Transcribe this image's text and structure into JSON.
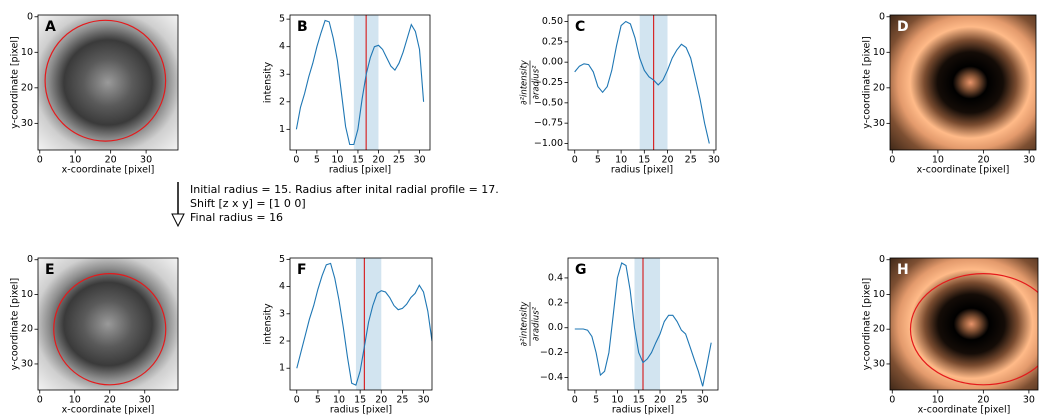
{
  "chart_data": [
    {
      "type": "image",
      "label": "A",
      "colormap": "gray",
      "xlabel": "x-coordinate [pixel]",
      "ylabel": "y-coordinate [pixel]",
      "xlim": [
        -0.5,
        39
      ],
      "ylim": [
        37.5,
        -0.5
      ],
      "xticks": [
        0,
        10,
        20,
        30
      ],
      "yticks": [
        0,
        10,
        20,
        30
      ],
      "circle": {
        "cx": 18.5,
        "cy": 18,
        "r": 17,
        "color": "#e41a1c"
      }
    },
    {
      "type": "line",
      "label": "B",
      "color": "#1f77b4",
      "xlabel": "radius [pixel]",
      "ylabel": "intensity",
      "xlim": [
        -1.55,
        32.55
      ],
      "ylim": [
        0.25,
        5.15
      ],
      "xticks": [
        0,
        5,
        10,
        15,
        20,
        25,
        30
      ],
      "yticks": [
        1,
        2,
        3,
        4,
        5
      ],
      "span": [
        14,
        20
      ],
      "vline": 17,
      "x": [
        0,
        1,
        2,
        3,
        4,
        5,
        6,
        7,
        8,
        9,
        10,
        11,
        12,
        13,
        14,
        15,
        16,
        17,
        18,
        19,
        20,
        21,
        22,
        23,
        24,
        25,
        26,
        27,
        28,
        29,
        30,
        31
      ],
      "values": [
        1.0,
        1.8,
        2.3,
        2.9,
        3.4,
        4.0,
        4.5,
        4.95,
        4.9,
        4.3,
        3.5,
        2.3,
        1.1,
        0.45,
        0.45,
        1.0,
        2.1,
        3.0,
        3.6,
        4.0,
        4.05,
        3.9,
        3.6,
        3.3,
        3.15,
        3.4,
        3.8,
        4.3,
        4.8,
        4.55,
        3.9,
        2.0
      ]
    },
    {
      "type": "line",
      "label": "C",
      "color": "#1f77b4",
      "xlabel": "radius [pixel]",
      "ylabel": [
        "∂²intensity",
        "∂radius²"
      ],
      "xlim": [
        -1.45,
        30.45
      ],
      "ylim": [
        -1.08,
        0.58
      ],
      "xticks": [
        0,
        5,
        10,
        15,
        20,
        25,
        30
      ],
      "yticks": [
        {
          "value": -1,
          "label": "−1.00"
        },
        {
          "value": -0.75,
          "label": "−0.75"
        },
        {
          "value": -0.5,
          "label": "−0.50"
        },
        {
          "value": -0.25,
          "label": "−0.25"
        },
        {
          "value": 0,
          "label": "0.00"
        },
        {
          "value": 0.25,
          "label": "0.25"
        },
        {
          "value": 0.5,
          "label": "0.50"
        }
      ],
      "span": [
        14,
        20
      ],
      "vline": 17,
      "x": [
        0,
        1,
        2,
        3,
        4,
        5,
        6,
        7,
        8,
        9,
        10,
        11,
        12,
        13,
        14,
        15,
        16,
        17,
        18,
        19,
        20,
        21,
        22,
        23,
        24,
        25,
        26,
        27,
        28,
        29
      ],
      "values": [
        -0.12,
        -0.05,
        -0.02,
        -0.03,
        -0.12,
        -0.3,
        -0.37,
        -0.3,
        -0.1,
        0.2,
        0.45,
        0.5,
        0.47,
        0.3,
        0.05,
        -0.1,
        -0.18,
        -0.22,
        -0.28,
        -0.22,
        -0.1,
        0.05,
        0.15,
        0.22,
        0.18,
        0.05,
        -0.2,
        -0.45,
        -0.75,
        -1.0
      ]
    },
    {
      "type": "image",
      "label": "D",
      "colormap": "copper",
      "xlabel": "x-coordinate [pixel]",
      "ylabel": "y-coordinate [pixel]",
      "xlim": [
        -0.5,
        31.5
      ],
      "ylim": [
        37.5,
        -0.5
      ],
      "xticks": [
        0,
        10,
        20,
        30
      ],
      "yticks": [
        0,
        10,
        20,
        30
      ]
    },
    {
      "type": "image",
      "label": "E",
      "colormap": "gray",
      "xlabel": "x-coordinate [pixel]",
      "ylabel": "y-coordinate [pixel]",
      "xlim": [
        -0.5,
        39.5
      ],
      "ylim": [
        37.5,
        -0.5
      ],
      "xticks": [
        0,
        10,
        20,
        30
      ],
      "yticks": [
        0,
        10,
        20,
        30
      ],
      "circle": {
        "cx": 20,
        "cy": 20,
        "r": 16,
        "color": "#e41a1c"
      }
    },
    {
      "type": "line",
      "label": "F",
      "color": "#1f77b4",
      "xlabel": "radius [pixel]",
      "ylabel": "intensity",
      "xlim": [
        -1.6,
        32
      ],
      "ylim": [
        0.2,
        5.05
      ],
      "xticks": [
        0,
        5,
        10,
        15,
        20,
        25,
        30
      ],
      "yticks": [
        1,
        2,
        3,
        4,
        5
      ],
      "span": [
        14,
        20
      ],
      "vline": 16,
      "x": [
        0,
        1,
        2,
        3,
        4,
        5,
        6,
        7,
        8,
        9,
        10,
        11,
        12,
        13,
        14,
        15,
        16,
        17,
        18,
        19,
        20,
        21,
        22,
        23,
        24,
        25,
        26,
        27,
        28,
        29,
        30,
        31,
        32
      ],
      "values": [
        1.0,
        1.6,
        2.2,
        2.8,
        3.3,
        3.9,
        4.4,
        4.8,
        4.85,
        4.3,
        3.5,
        2.5,
        1.4,
        0.45,
        0.38,
        0.9,
        1.8,
        2.7,
        3.3,
        3.75,
        3.85,
        3.8,
        3.6,
        3.3,
        3.15,
        3.2,
        3.35,
        3.6,
        3.75,
        4.05,
        3.8,
        3.1,
        2.0
      ]
    },
    {
      "type": "line",
      "label": "G",
      "color": "#1f77b4",
      "xlabel": "radius [pixel]",
      "ylabel": [
        "∂²intensity",
        "∂radius²"
      ],
      "xlim": [
        -1.6,
        33.6
      ],
      "ylim": [
        -0.5,
        0.56
      ],
      "xticks": [
        0,
        5,
        10,
        15,
        20,
        25,
        30
      ],
      "yticks": [
        {
          "value": -0.4,
          "label": "−0.4"
        },
        {
          "value": -0.2,
          "label": "−0.2"
        },
        {
          "value": 0,
          "label": "0.0"
        },
        0.2,
        0.4
      ],
      "span": [
        14,
        20
      ],
      "vline": 16,
      "x": [
        0,
        1,
        2,
        3,
        4,
        5,
        6,
        7,
        8,
        9,
        10,
        11,
        12,
        13,
        14,
        15,
        16,
        17,
        18,
        19,
        20,
        21,
        22,
        23,
        24,
        25,
        26,
        27,
        28,
        29,
        30,
        31,
        32
      ],
      "values": [
        -0.01,
        -0.01,
        -0.01,
        -0.02,
        -0.07,
        -0.2,
        -0.38,
        -0.35,
        -0.2,
        0.1,
        0.4,
        0.52,
        0.5,
        0.3,
        0.0,
        -0.2,
        -0.28,
        -0.25,
        -0.2,
        -0.12,
        -0.05,
        0.05,
        0.1,
        0.1,
        0.05,
        -0.02,
        -0.05,
        -0.15,
        -0.25,
        -0.35,
        -0.47,
        -0.3,
        -0.12
      ]
    },
    {
      "type": "image",
      "label": "H",
      "colormap": "copper",
      "xlabel": "x-coordinate [pixel]",
      "ylabel": "y-coordinate [pixel]",
      "xlim": [
        -0.5,
        32
      ],
      "ylim": [
        37.5,
        -0.5
      ],
      "xticks": [
        0,
        10,
        20,
        30
      ],
      "yticks": [
        0,
        10,
        20,
        30
      ],
      "circle": {
        "cx": 20,
        "cy": 20,
        "r": 16,
        "color": "#e41a1c"
      }
    }
  ],
  "annotation": [
    "Initial radius = 15. Radius after inital radial profile = 17.",
    "Shift [z x y] = [1 0 0]",
    "Final radius = 16"
  ]
}
